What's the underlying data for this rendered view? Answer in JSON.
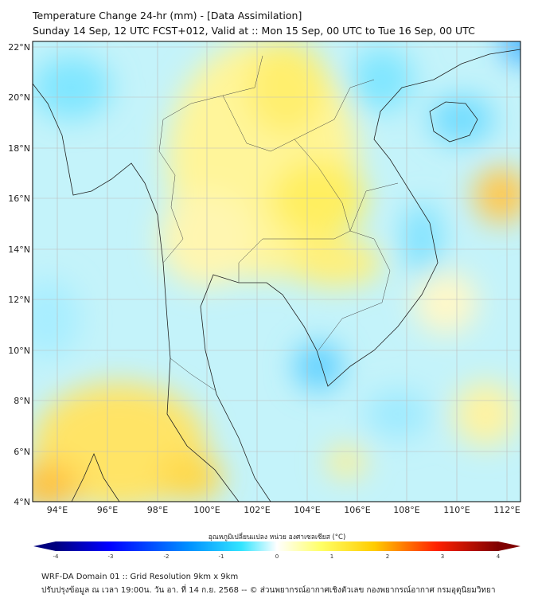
{
  "header": {
    "title": "Temperature Change 24-hr (mm) - [Data Assimilation]",
    "subtitle": "Sunday 14 Sep, 12 UTC FCST+012, Valid at :: Mon 15 Sep, 00 UTC to Tue 16 Sep, 00 UTC"
  },
  "map": {
    "lat_labels": [
      "22°N",
      "20°N",
      "18°N",
      "16°N",
      "14°N",
      "12°N",
      "10°N",
      "8°N",
      "6°N",
      "4°N"
    ],
    "lon_labels": [
      "94°E",
      "96°E",
      "98°E",
      "100°E",
      "102°E",
      "104°E",
      "106°E",
      "108°E",
      "110°E",
      "112°E"
    ]
  },
  "colorbar": {
    "label": "อุณหภูมิเปลี่ยนแปลง หน่วย องศาเซลเซียส (°C)",
    "ticks": [
      "-4",
      "-3",
      "-2",
      "-1",
      "0",
      "1",
      "2",
      "3",
      "4"
    ],
    "colors": [
      "#00007f",
      "#0000ff",
      "#0080ff",
      "#33ddff",
      "#ffffff",
      "#ffff66",
      "#ffcc00",
      "#ff3300",
      "#7f0000"
    ]
  },
  "footer": {
    "line1": "WRF-DA Domain 01 :: Grid Resolution 9km x 9km",
    "line2": "ปรับปรุงข้อมูล ณ เวลา 19:00น. วัน อา. ที่ 14 ก.ย. 2568 -- © ส่วนพยากรณ์อากาศเชิงตัวเลข กองพยากรณ์อากาศ กรมอุตุนิยมวิทยา"
  }
}
